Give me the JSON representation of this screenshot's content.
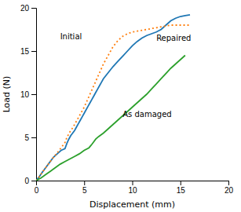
{
  "chart_data": {
    "type": "line",
    "xlabel": "Displacement (mm)",
    "ylabel": "Load (N)",
    "xlim": [
      0,
      20
    ],
    "ylim": [
      0,
      20
    ],
    "xticks": [
      0,
      5,
      10,
      15,
      20
    ],
    "yticks": [
      0,
      5,
      10,
      15,
      20
    ],
    "grid": false,
    "series": [
      {
        "line_style": "solid",
        "x": [
          0,
          0.3,
          0.6,
          1.0,
          1.4,
          1.8,
          2.2,
          2.6,
          3.0,
          3.2,
          3.4,
          3.6,
          3.8,
          4.0,
          4.2,
          4.4,
          4.6,
          4.8,
          5.0,
          5.2,
          5.4,
          5.6,
          5.8,
          6.0,
          6.2,
          6.4,
          6.6,
          6.8,
          7.0,
          7.5,
          8.0,
          8.5,
          9.0,
          9.5,
          10.0,
          10.5,
          11.0,
          11.5,
          12.0,
          12.5,
          13.0,
          13.5,
          14.0,
          14.5,
          15.0,
          15.5,
          16.0
        ],
        "values": [
          0,
          0.4,
          0.9,
          1.5,
          2.1,
          2.7,
          3.1,
          3.5,
          3.7,
          4.3,
          4.8,
          5.2,
          5.5,
          5.8,
          6.2,
          6.6,
          7.0,
          7.4,
          7.8,
          8.2,
          8.6,
          9.0,
          9.4,
          9.8,
          10.2,
          10.6,
          11.0,
          11.4,
          11.8,
          12.5,
          13.2,
          13.8,
          14.4,
          15.0,
          15.6,
          16.1,
          16.5,
          16.8,
          17.0,
          17.2,
          17.5,
          18.0,
          18.5,
          18.8,
          19.0,
          19.1,
          19.2
        ]
      },
      {
        "line_style": "dotted",
        "x": [
          0,
          0.3,
          0.6,
          1.0,
          1.4,
          1.8,
          2.2,
          2.6,
          3.0,
          3.2,
          3.4,
          3.6,
          3.8,
          4.0,
          4.2,
          4.4,
          4.6,
          4.8,
          5.0,
          5.2,
          5.4,
          5.6,
          5.8,
          6.0,
          6.2,
          6.4,
          6.6,
          6.8,
          7.0,
          7.5,
          8.0,
          8.5,
          9.0,
          9.5,
          10.0,
          10.5,
          11.0,
          11.5,
          12.0,
          12.5,
          13.0,
          13.5,
          14.0,
          14.5,
          15.0,
          15.5,
          16.0
        ],
        "values": [
          0,
          0.4,
          0.9,
          1.5,
          2.1,
          2.7,
          3.2,
          3.8,
          4.4,
          5.0,
          5.4,
          5.8,
          6.1,
          6.5,
          6.9,
          7.3,
          7.7,
          8.1,
          8.5,
          9.0,
          9.5,
          10.0,
          10.5,
          11.0,
          11.5,
          12.0,
          12.5,
          13.0,
          13.5,
          14.5,
          15.5,
          16.2,
          16.7,
          17.0,
          17.2,
          17.3,
          17.4,
          17.5,
          17.6,
          17.7,
          17.8,
          17.9,
          18.0,
          18.0,
          18.0,
          18.0,
          18.0
        ]
      },
      {
        "line_style": "solid",
        "x": [
          0,
          0.5,
          1.0,
          1.5,
          2.0,
          2.5,
          3.0,
          3.5,
          4.0,
          4.5,
          5.0,
          5.5,
          5.8,
          6.0,
          6.2,
          6.5,
          7.0,
          7.5,
          8.0,
          8.5,
          9.0,
          9.5,
          10.0,
          10.5,
          11.0,
          11.5,
          12.0,
          12.5,
          13.0,
          13.5,
          14.0,
          14.5,
          15.0,
          15.5
        ],
        "values": [
          0,
          0.3,
          0.7,
          1.1,
          1.5,
          1.9,
          2.2,
          2.5,
          2.8,
          3.1,
          3.5,
          3.8,
          4.2,
          4.5,
          4.8,
          5.1,
          5.5,
          6.0,
          6.5,
          7.0,
          7.5,
          8.0,
          8.5,
          9.0,
          9.5,
          10.0,
          10.6,
          11.2,
          11.8,
          12.4,
          13.0,
          13.5,
          14.0,
          14.5
        ]
      }
    ],
    "annotations": [
      {
        "text": "Initial",
        "x": 2.5,
        "y": 16.2
      },
      {
        "text": "Repaired",
        "x": 12.5,
        "y": 16.0
      },
      {
        "text": "As damaged",
        "x": 9.0,
        "y": 7.2
      }
    ]
  }
}
